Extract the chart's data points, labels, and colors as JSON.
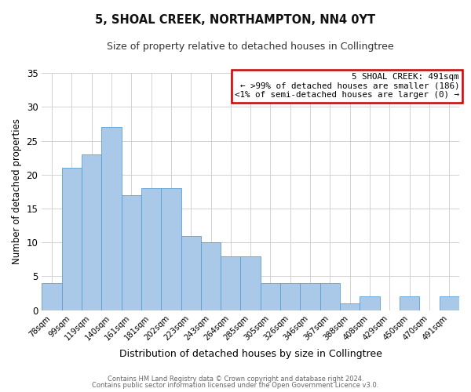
{
  "title": "5, SHOAL CREEK, NORTHAMPTON, NN4 0YT",
  "subtitle": "Size of property relative to detached houses in Collingtree",
  "xlabel": "Distribution of detached houses by size in Collingtree",
  "ylabel": "Number of detached properties",
  "bar_color": "#aac9e8",
  "bar_edge_color": "#5a9fd4",
  "categories": [
    "78sqm",
    "99sqm",
    "119sqm",
    "140sqm",
    "161sqm",
    "181sqm",
    "202sqm",
    "223sqm",
    "243sqm",
    "264sqm",
    "285sqm",
    "305sqm",
    "326sqm",
    "346sqm",
    "367sqm",
    "388sqm",
    "408sqm",
    "429sqm",
    "450sqm",
    "470sqm",
    "491sqm"
  ],
  "values": [
    4,
    21,
    23,
    27,
    17,
    18,
    18,
    11,
    10,
    8,
    8,
    4,
    4,
    4,
    4,
    1,
    2,
    0,
    2,
    0,
    2
  ],
  "ylim": [
    0,
    35
  ],
  "yticks": [
    0,
    5,
    10,
    15,
    20,
    25,
    30,
    35
  ],
  "annotation_title": "5 SHOAL CREEK: 491sqm",
  "annotation_line1": "← >99% of detached houses are smaller (186)",
  "annotation_line2": "<1% of semi-detached houses are larger (0) →",
  "box_edge_color": "#cc0000",
  "footer_line1": "Contains HM Land Registry data © Crown copyright and database right 2024.",
  "footer_line2": "Contains public sector information licensed under the Open Government Licence v3.0.",
  "bg_color": "#ffffff",
  "grid_color": "#cccccc"
}
